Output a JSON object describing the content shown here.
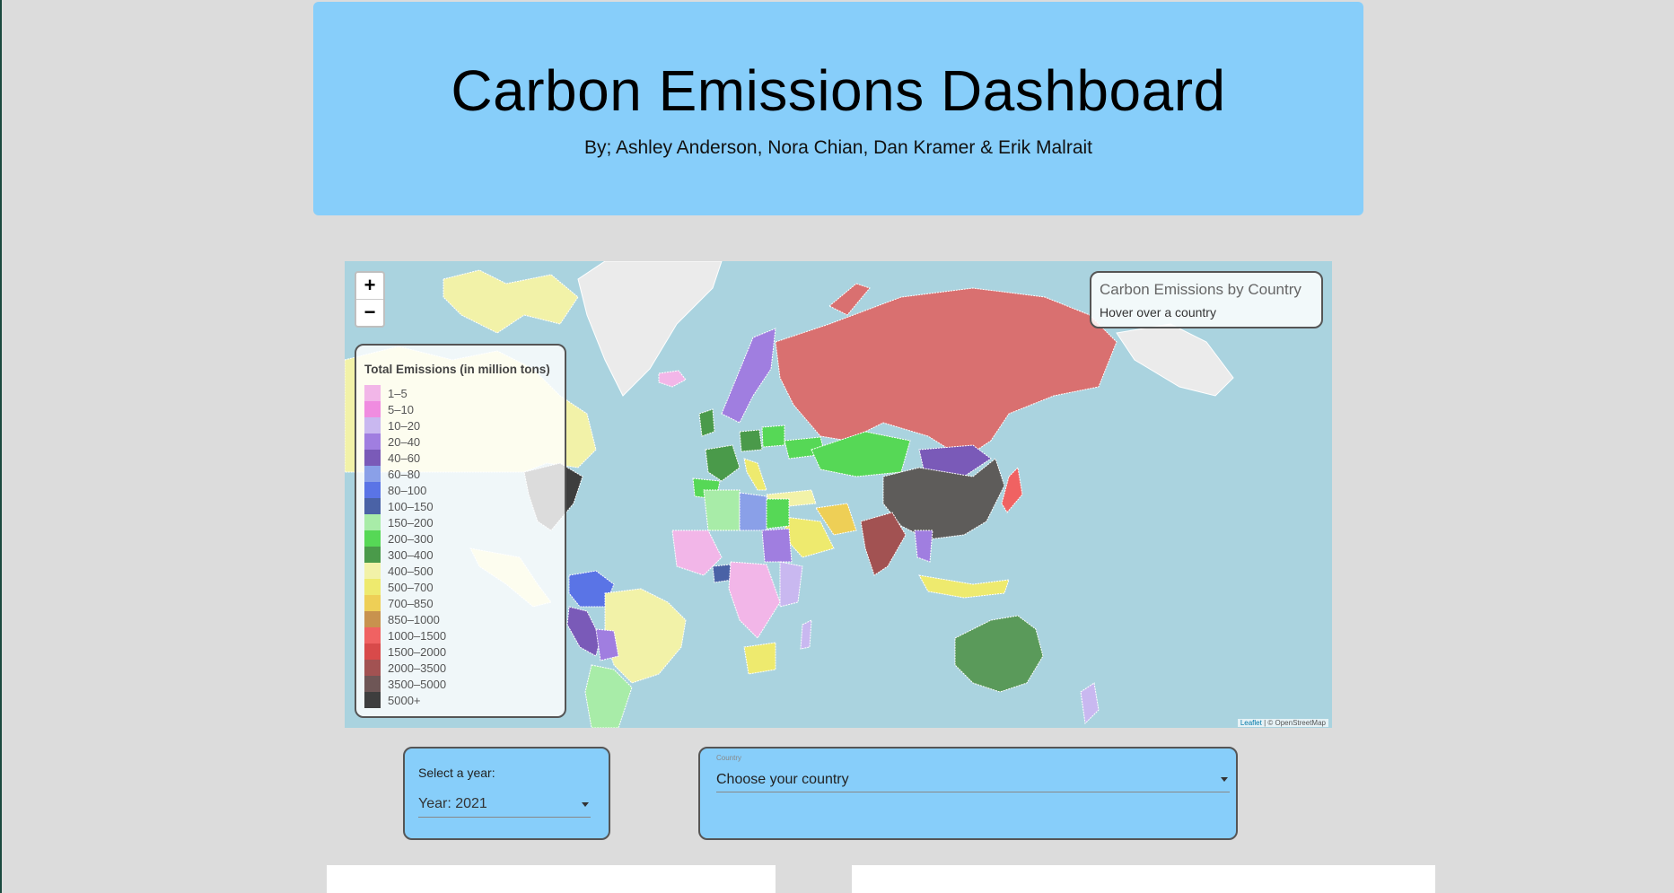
{
  "header": {
    "title": "Carbon Emissions Dashboard",
    "byline": "By; Ashley Anderson, Nora Chian, Dan Kramer & Erik Malrait"
  },
  "map": {
    "zoom_in": "+",
    "zoom_out": "−",
    "info_title": "Carbon Emissions by Country",
    "info_subtitle": "Hover over a country",
    "legend_title": "Total Emissions (in million tons)",
    "legend": [
      {
        "label": "1–5",
        "color": "#f2b6e8"
      },
      {
        "label": "5–10",
        "color": "#f08ce0"
      },
      {
        "label": "10–20",
        "color": "#c9b8f0"
      },
      {
        "label": "20–40",
        "color": "#a07ee0"
      },
      {
        "label": "40–60",
        "color": "#7a5ab8"
      },
      {
        "label": "60–80",
        "color": "#8aa0e8"
      },
      {
        "label": "80–100",
        "color": "#5a74e6"
      },
      {
        "label": "100–150",
        "color": "#4a62a6"
      },
      {
        "label": "150–200",
        "color": "#a8eca8"
      },
      {
        "label": "200–300",
        "color": "#56d856"
      },
      {
        "label": "300–400",
        "color": "#4a9a4a"
      },
      {
        "label": "400–500",
        "color": "#f2f2a8"
      },
      {
        "label": "500–700",
        "color": "#eeea6e"
      },
      {
        "label": "700–850",
        "color": "#eecf56"
      },
      {
        "label": "850–1000",
        "color": "#c8924e"
      },
      {
        "label": "1000–1500",
        "color": "#f06262"
      },
      {
        "label": "1500–2000",
        "color": "#d84a4a"
      },
      {
        "label": "2000–3500",
        "color": "#a25252"
      },
      {
        "label": "3500–5000",
        "color": "#6e5656"
      },
      {
        "label": "5000+",
        "color": "#3e3e3e"
      }
    ],
    "attribution_leaflet": "Leaflet",
    "attribution_osm": "| © OpenStreetMap"
  },
  "controls": {
    "year_label": "Select a year:",
    "year_value": "Year: 2021",
    "country_tiny_label": "Country",
    "country_value": "Choose your country"
  }
}
